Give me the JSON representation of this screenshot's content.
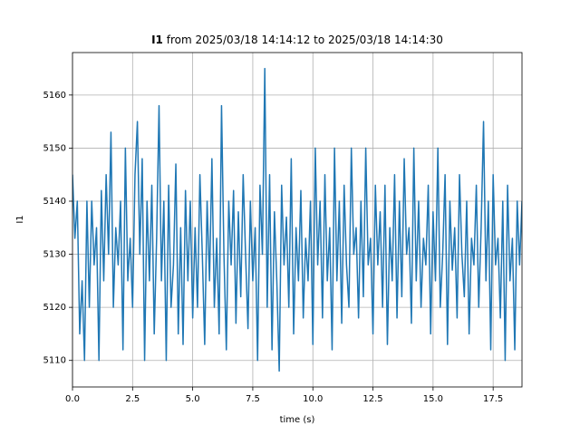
{
  "chart_data": {
    "type": "line",
    "title_parts": [
      "I1",
      "from 2025/03/18 14:14:12 to 2025/03/18 14:14:30"
    ],
    "xlabel": "time (s)",
    "ylabel": "I1",
    "x": [
      0,
      0.1,
      0.2,
      0.3,
      0.4,
      0.5,
      0.6,
      0.7,
      0.8,
      0.9,
      1,
      1.1,
      1.2,
      1.3,
      1.4,
      1.5,
      1.6,
      1.7,
      1.8,
      1.9,
      2,
      2.1,
      2.2,
      2.3,
      2.4,
      2.5,
      2.6,
      2.7,
      2.8,
      2.9,
      3,
      3.1,
      3.2,
      3.3,
      3.4,
      3.5,
      3.6,
      3.7,
      3.8,
      3.9,
      4,
      4.1,
      4.2,
      4.3,
      4.4,
      4.5,
      4.6,
      4.7,
      4.8,
      4.9,
      5,
      5.1,
      5.2,
      5.3,
      5.4,
      5.5,
      5.6,
      5.7,
      5.8,
      5.9,
      6,
      6.1,
      6.2,
      6.3,
      6.4,
      6.5,
      6.6,
      6.7,
      6.8,
      6.9,
      7,
      7.1,
      7.2,
      7.3,
      7.4,
      7.5,
      7.6,
      7.7,
      7.8,
      7.9,
      8,
      8.1,
      8.2,
      8.3,
      8.4,
      8.5,
      8.6,
      8.7,
      8.8,
      8.9,
      9,
      9.1,
      9.2,
      9.3,
      9.4,
      9.5,
      9.6,
      9.7,
      9.8,
      9.9,
      10,
      10.1,
      10.2,
      10.3,
      10.4,
      10.5,
      10.6,
      10.7,
      10.8,
      10.9,
      11,
      11.1,
      11.2,
      11.3,
      11.4,
      11.5,
      11.6,
      11.7,
      11.8,
      11.9,
      12,
      12.1,
      12.2,
      12.3,
      12.4,
      12.5,
      12.6,
      12.7,
      12.8,
      12.9,
      13,
      13.1,
      13.2,
      13.3,
      13.4,
      13.5,
      13.6,
      13.7,
      13.8,
      13.9,
      14,
      14.1,
      14.2,
      14.3,
      14.4,
      14.5,
      14.6,
      14.7,
      14.8,
      14.9,
      15,
      15.1,
      15.2,
      15.3,
      15.4,
      15.5,
      15.6,
      15.7,
      15.8,
      15.9,
      16,
      16.1,
      16.2,
      16.3,
      16.4,
      16.5,
      16.6,
      16.7,
      16.8,
      16.9,
      17,
      17.1,
      17.2,
      17.3,
      17.4,
      17.5,
      17.6,
      17.7,
      17.8,
      17.9,
      18,
      18.1,
      18.2,
      18.3,
      18.4,
      18.5,
      18.6,
      18.7
    ],
    "values": [
      5145,
      5133,
      5140,
      5115,
      5125,
      5110,
      5140,
      5120,
      5140,
      5128,
      5135,
      5110,
      5142,
      5125,
      5145,
      5130,
      5153,
      5120,
      5135,
      5128,
      5140,
      5112,
      5150,
      5125,
      5133,
      5120,
      5145,
      5155,
      5130,
      5148,
      5110,
      5140,
      5125,
      5143,
      5115,
      5133,
      5158,
      5125,
      5140,
      5110,
      5143,
      5120,
      5128,
      5147,
      5115,
      5135,
      5113,
      5142,
      5125,
      5140,
      5118,
      5135,
      5120,
      5145,
      5130,
      5113,
      5140,
      5125,
      5148,
      5120,
      5133,
      5115,
      5158,
      5130,
      5112,
      5140,
      5128,
      5142,
      5117,
      5138,
      5122,
      5145,
      5130,
      5116,
      5140,
      5125,
      5135,
      5110,
      5143,
      5130,
      5165,
      5120,
      5145,
      5112,
      5138,
      5125,
      5108,
      5143,
      5128,
      5137,
      5120,
      5148,
      5115,
      5135,
      5125,
      5142,
      5118,
      5133,
      5125,
      5140,
      5113,
      5150,
      5128,
      5140,
      5118,
      5145,
      5125,
      5135,
      5112,
      5150,
      5125,
      5140,
      5117,
      5143,
      5128,
      5120,
      5150,
      5130,
      5135,
      5118,
      5140,
      5122,
      5150,
      5128,
      5133,
      5115,
      5143,
      5128,
      5138,
      5120,
      5143,
      5113,
      5135,
      5125,
      5145,
      5118,
      5140,
      5122,
      5148,
      5130,
      5135,
      5117,
      5150,
      5125,
      5140,
      5120,
      5133,
      5128,
      5143,
      5115,
      5138,
      5125,
      5150,
      5120,
      5130,
      5145,
      5113,
      5140,
      5127,
      5135,
      5118,
      5145,
      5130,
      5122,
      5140,
      5115,
      5133,
      5128,
      5143,
      5120,
      5135,
      5155,
      5125,
      5140,
      5112,
      5145,
      5128,
      5133,
      5118,
      5140,
      5110,
      5143,
      5125,
      5133,
      5112,
      5140,
      5128,
      5140
    ],
    "color": "#1f77b4",
    "xlim": [
      0,
      18.7
    ],
    "ylim": [
      5105,
      5168
    ],
    "xticks": [
      {
        "value": 0,
        "label": "0.0"
      },
      2.5,
      {
        "value": 5,
        "label": "5.0"
      },
      7.5,
      {
        "value": 10,
        "label": "10.0"
      },
      12.5,
      {
        "value": 15,
        "label": "15.0"
      },
      17.5
    ],
    "yticks": [
      5110,
      5120,
      5130,
      5140,
      5150,
      5160
    ],
    "grid": true
  }
}
